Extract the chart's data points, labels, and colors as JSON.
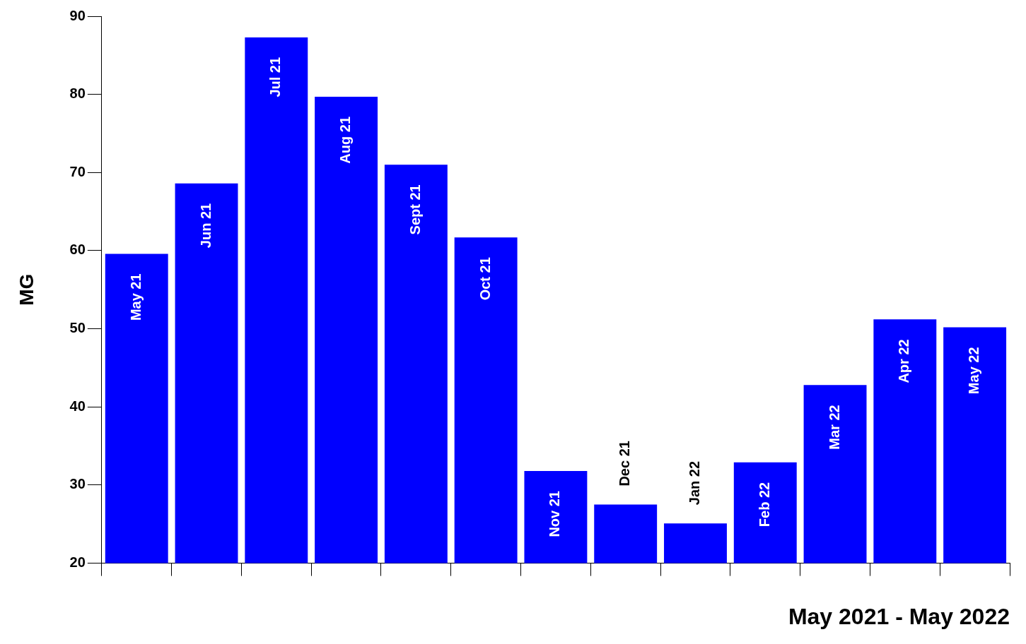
{
  "chart_data": {
    "type": "bar",
    "ylabel": "MG",
    "xlabel": "May 2021 - May 2022",
    "categories": [
      "May 21",
      "Jun 21",
      "Jul 21",
      "Aug 21",
      "Sept 21",
      "Oct 21",
      "Nov 21",
      "Dec 21",
      "Jan 22",
      "Feb 22",
      "Mar 22",
      "Apr 22",
      "May 22"
    ],
    "values": [
      59.6,
      68.6,
      87.3,
      79.7,
      71,
      61.7,
      31.8,
      27.5,
      25.1,
      32.9,
      42.8,
      51.2,
      50.2
    ],
    "color": "#0000ff",
    "ylim": [
      20,
      90
    ],
    "yticks": [
      20,
      30,
      40,
      50,
      60,
      70,
      80,
      90
    ],
    "grid": false,
    "legend": false
  }
}
